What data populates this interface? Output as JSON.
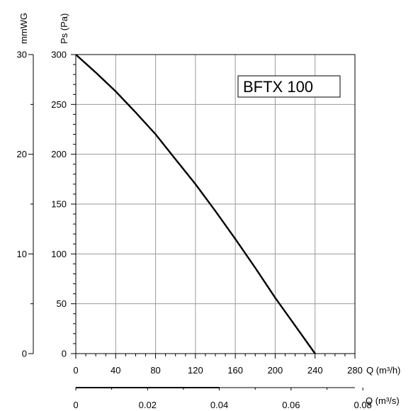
{
  "chart_data": {
    "type": "line",
    "model_label": "BFTX 100",
    "y_axis": {
      "label": "Ps (Pa)",
      "range": [
        0,
        300
      ],
      "major_ticks": [
        0,
        50,
        100,
        150,
        200,
        250,
        300
      ],
      "minor_step": 10
    },
    "y2_axis": {
      "label": "mmWG",
      "range": [
        0,
        30
      ],
      "ticks": [
        0,
        10,
        20,
        30
      ]
    },
    "x_axis": {
      "label": "Q (m³/h)",
      "range": [
        0,
        280
      ],
      "major_ticks": [
        0,
        40,
        80,
        120,
        160,
        200,
        240,
        280
      ],
      "minor_step": 10
    },
    "x2_axis": {
      "label": "Q (m³/s)",
      "range": [
        0,
        0.0778
      ],
      "ticks": [
        0,
        0.02,
        0.04,
        0.06,
        0.08
      ],
      "tick_labels": [
        "0",
        "0.02",
        "0.04",
        "0.06",
        "0.08"
      ]
    },
    "grid": true,
    "series": [
      {
        "x": [
          0,
          20,
          40,
          60,
          80,
          100,
          120,
          140,
          160,
          180,
          200,
          220,
          240
        ],
        "y": [
          300,
          282,
          263,
          242,
          220,
          195,
          170,
          143,
          115,
          86,
          56,
          28,
          0
        ]
      }
    ]
  }
}
